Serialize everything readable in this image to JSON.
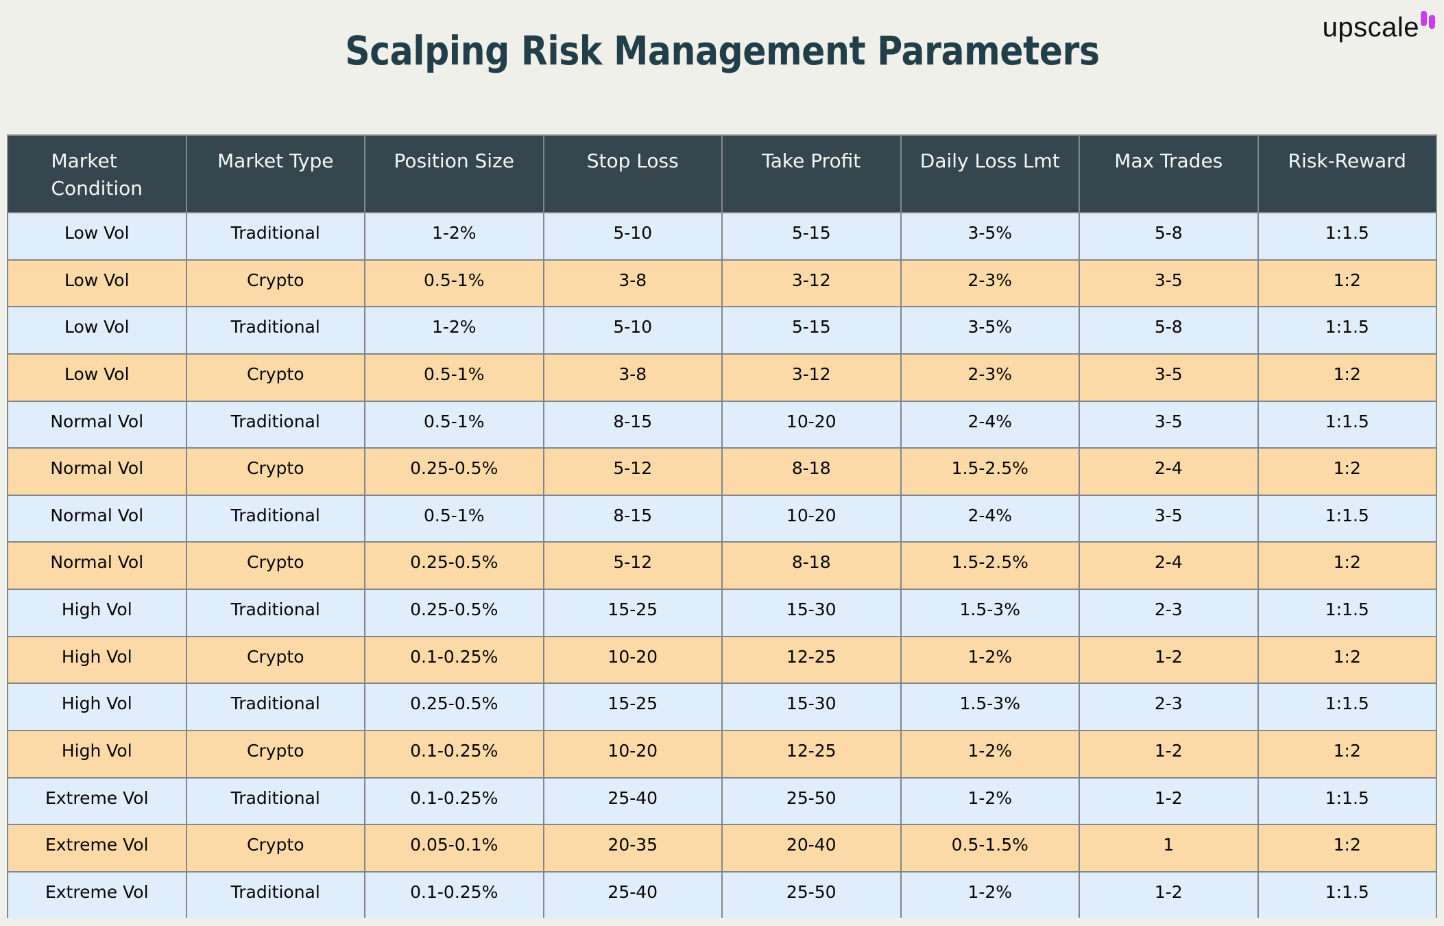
{
  "title": "Scalping Risk Management Parameters",
  "logo": {
    "text": "upscale",
    "icon": "double-bars-icon",
    "icon_color": "#c93bf2"
  },
  "colors": {
    "page_bg": "#eff0e9",
    "title_text": "#223f49",
    "header_bg": "#35464e",
    "header_text": "#f4f6f6",
    "row_blue": "#e0edfa",
    "row_orange": "#fcdaa7",
    "border": "#82878b"
  },
  "chart_data": {
    "type": "table",
    "title": "Scalping Risk Management Parameters",
    "columns": [
      "Market\nCondition",
      "Market Type",
      "Position Size",
      "Stop Loss",
      "Take Profit",
      "Daily Loss Lmt",
      "Max Trades",
      "Risk-Reward"
    ],
    "rows": [
      [
        "Low Vol",
        "Traditional",
        "1-2%",
        "5-10",
        "5-15",
        "3-5%",
        "5-8",
        "1:1.5"
      ],
      [
        "Low Vol",
        "Crypto",
        "0.5-1%",
        "3-8",
        "3-12",
        "2-3%",
        "3-5",
        "1:2"
      ],
      [
        "Low Vol",
        "Traditional",
        "1-2%",
        "5-10",
        "5-15",
        "3-5%",
        "5-8",
        "1:1.5"
      ],
      [
        "Low Vol",
        "Crypto",
        "0.5-1%",
        "3-8",
        "3-12",
        "2-3%",
        "3-5",
        "1:2"
      ],
      [
        "Normal Vol",
        "Traditional",
        "0.5-1%",
        "8-15",
        "10-20",
        "2-4%",
        "3-5",
        "1:1.5"
      ],
      [
        "Normal Vol",
        "Crypto",
        "0.25-0.5%",
        "5-12",
        "8-18",
        "1.5-2.5%",
        "2-4",
        "1:2"
      ],
      [
        "Normal Vol",
        "Traditional",
        "0.5-1%",
        "8-15",
        "10-20",
        "2-4%",
        "3-5",
        "1:1.5"
      ],
      [
        "Normal Vol",
        "Crypto",
        "0.25-0.5%",
        "5-12",
        "8-18",
        "1.5-2.5%",
        "2-4",
        "1:2"
      ],
      [
        "High Vol",
        "Traditional",
        "0.25-0.5%",
        "15-25",
        "15-30",
        "1.5-3%",
        "2-3",
        "1:1.5"
      ],
      [
        "High Vol",
        "Crypto",
        "0.1-0.25%",
        "10-20",
        "12-25",
        "1-2%",
        "1-2",
        "1:2"
      ],
      [
        "High Vol",
        "Traditional",
        "0.25-0.5%",
        "15-25",
        "15-30",
        "1.5-3%",
        "2-3",
        "1:1.5"
      ],
      [
        "High Vol",
        "Crypto",
        "0.1-0.25%",
        "10-20",
        "12-25",
        "1-2%",
        "1-2",
        "1:2"
      ],
      [
        "Extreme Vol",
        "Traditional",
        "0.1-0.25%",
        "25-40",
        "25-50",
        "1-2%",
        "1-2",
        "1:1.5"
      ],
      [
        "Extreme Vol",
        "Crypto",
        "0.05-0.1%",
        "20-35",
        "20-40",
        "0.5-1.5%",
        "1",
        "1:2"
      ],
      [
        "Extreme Vol",
        "Traditional",
        "0.1-0.25%",
        "25-40",
        "25-50",
        "1-2%",
        "1-2",
        "1:1.5"
      ]
    ],
    "row_stripe_pattern": [
      "blue",
      "orange"
    ],
    "legend_position": "none",
    "grid": true
  }
}
